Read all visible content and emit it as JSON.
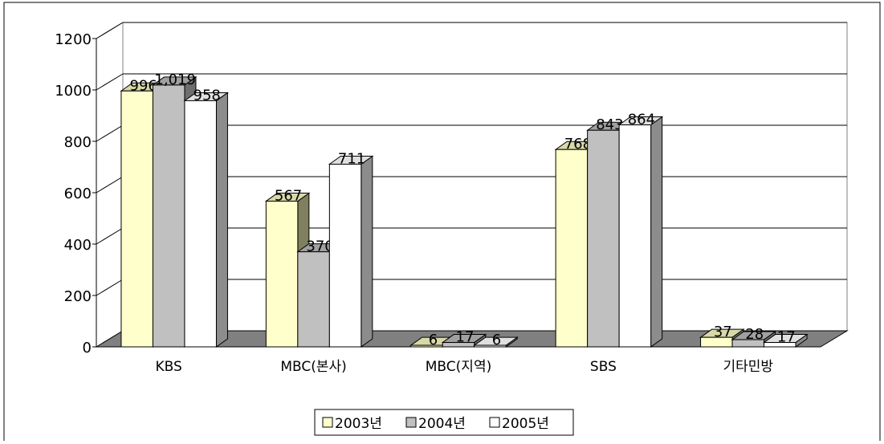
{
  "chart_data": {
    "type": "bar",
    "categories": [
      "KBS",
      "MBC(본사)",
      "MBC(지역)",
      "SBS",
      "기타민방"
    ],
    "series": [
      {
        "name": "2003년",
        "values": [
          996,
          567,
          6,
          768,
          37
        ]
      },
      {
        "name": "2004년",
        "values": [
          1019,
          370,
          17,
          843,
          28
        ]
      },
      {
        "name": "2005년",
        "values": [
          958,
          711,
          6,
          864,
          17
        ]
      }
    ],
    "data_labels": [
      [
        "996",
        "567",
        "6",
        "768",
        "37"
      ],
      [
        "1,019",
        "370",
        "17",
        "843",
        "28"
      ],
      [
        "958",
        "711",
        "6",
        "864",
        "17"
      ]
    ],
    "yticks": [
      "0",
      "200",
      "400",
      "600",
      "800",
      "1000",
      "1200"
    ],
    "ylim": [
      0,
      1200
    ],
    "grid": true,
    "legend_position": "bottom",
    "colors": {
      "series": [
        "#FFFFCC",
        "#C0C0C0",
        "#FFFFFF"
      ],
      "series_side": [
        "#808060",
        "#6E6E6E",
        "#8C8C8C"
      ],
      "series_top": [
        "#D8D8A8",
        "#A0A0A0",
        "#E0E0E0"
      ],
      "floor": "#808080",
      "gridline": "#000000",
      "border": "#000000"
    }
  }
}
